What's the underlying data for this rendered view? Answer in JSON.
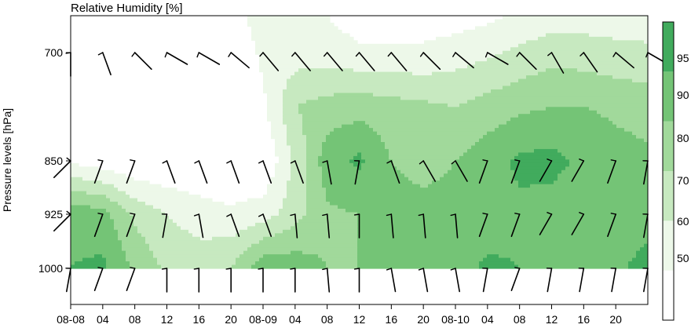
{
  "chart_data": {
    "type": "contour",
    "title": "Relative Humidity [%]",
    "ylabel": "Pressure levels [hPa]",
    "xlabel": "",
    "x_tick_labels": [
      "08-08",
      "04",
      "08",
      "12",
      "16",
      "20",
      "08-09",
      "04",
      "08",
      "12",
      "16",
      "20",
      "08-10",
      "04",
      "08",
      "12",
      "16",
      "20"
    ],
    "y_tick_labels": [
      {
        "value": 700,
        "label": "700"
      },
      {
        "value": 850,
        "label": "850"
      },
      {
        "value": 925,
        "label": "925"
      },
      {
        "value": 1000,
        "label": "1000"
      }
    ],
    "colorbar": {
      "levels": [
        40,
        50,
        60,
        70,
        80,
        90,
        100
      ],
      "tick_labels": [
        {
          "value": 50,
          "label": "50"
        },
        {
          "value": 60,
          "label": "60"
        },
        {
          "value": 70,
          "label": "70"
        },
        {
          "value": 80,
          "label": "80"
        },
        {
          "value": 90,
          "label": "90"
        },
        {
          "value": 95,
          "label": "95"
        }
      ],
      "colors": [
        "#ffffff",
        "#edf8e9",
        "#c7e9c0",
        "#a1d99b",
        "#74c476",
        "#41ab5d",
        "#238b45"
      ]
    },
    "hours": [
      0,
      4,
      8,
      12,
      16,
      20,
      24,
      28,
      32,
      36,
      40,
      44,
      48,
      52,
      56,
      60,
      64,
      68,
      72
    ],
    "pressure_levels": [
      650,
      700,
      775,
      850,
      925,
      1000
    ],
    "humidity": [
      [
        40,
        40,
        40,
        40,
        40,
        45,
        55,
        52,
        50,
        45,
        45,
        45,
        45,
        48,
        52,
        55,
        55,
        55,
        55
      ],
      [
        40,
        40,
        40,
        40,
        40,
        42,
        52,
        55,
        55,
        52,
        52,
        52,
        55,
        58,
        62,
        66,
        65,
        63,
        62
      ],
      [
        40,
        40,
        40,
        40,
        40,
        40,
        48,
        70,
        74,
        76,
        74,
        72,
        70,
        74,
        78,
        80,
        80,
        78,
        76
      ],
      [
        48,
        44,
        40,
        40,
        40,
        40,
        40,
        62,
        86,
        92,
        80,
        78,
        80,
        86,
        92,
        93,
        88,
        84,
        82
      ],
      [
        88,
        84,
        68,
        60,
        55,
        52,
        55,
        66,
        78,
        80,
        82,
        82,
        82,
        84,
        88,
        86,
        82,
        82,
        86
      ],
      [
        90,
        92,
        78,
        68,
        66,
        70,
        88,
        86,
        80,
        80,
        80,
        82,
        86,
        92,
        90,
        86,
        84,
        88,
        94
      ]
    ],
    "wind_levels": [
      700,
      850,
      925,
      1000
    ],
    "wind_barbs": [
      {
        "level": 700,
        "dirs": [
          180,
          160,
          135,
          120,
          120,
          130,
          140,
          140,
          140,
          140,
          140,
          135,
          130,
          120,
          135,
          150,
          145,
          130,
          120
        ]
      },
      {
        "level": 850,
        "dirs": [
          225,
          200,
          200,
          160,
          160,
          160,
          160,
          160,
          170,
          190,
          160,
          150,
          150,
          200,
          200,
          210,
          210,
          200,
          190
        ]
      },
      {
        "level": 925,
        "dirs": [
          225,
          200,
          200,
          190,
          170,
          160,
          160,
          175,
          175,
          180,
          175,
          175,
          175,
          200,
          200,
          210,
          210,
          200,
          190
        ]
      },
      {
        "level": 1000,
        "dirs": [
          190,
          200,
          200,
          180,
          180,
          180,
          180,
          180,
          175,
          180,
          170,
          170,
          170,
          190,
          200,
          190,
          190,
          190,
          190
        ]
      }
    ]
  }
}
